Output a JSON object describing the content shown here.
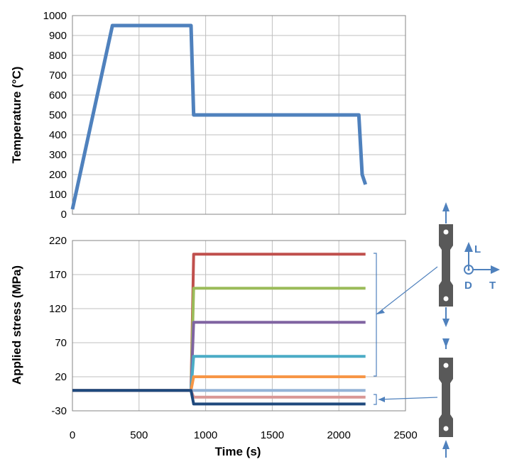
{
  "chart_data": [
    {
      "type": "line",
      "ylabel": "Temperature (°C)",
      "xlim": [
        0,
        2500
      ],
      "ylim": [
        0,
        1000
      ],
      "yticks": [
        0,
        100,
        200,
        300,
        400,
        500,
        600,
        700,
        800,
        900,
        1000
      ],
      "xticks": [
        0,
        500,
        1000,
        1500,
        2000,
        2500
      ],
      "grid": true,
      "series": [
        {
          "name": "Temperature",
          "color": "#4f81bd",
          "x": [
            0,
            300,
            890,
            910,
            2150,
            2175,
            2200
          ],
          "y": [
            25,
            950,
            950,
            500,
            500,
            200,
            150
          ]
        }
      ]
    },
    {
      "type": "line",
      "xlabel": "Time (s)",
      "ylabel": "Applied stress (MPa)",
      "xlim": [
        0,
        2500
      ],
      "ylim": [
        -30,
        220
      ],
      "yticks": [
        -30,
        20,
        70,
        120,
        170,
        220
      ],
      "xticks": [
        0,
        500,
        1000,
        1500,
        2000,
        2500
      ],
      "grid": true,
      "series": [
        {
          "name": "200 MPa",
          "color": "#c0504d",
          "x": [
            0,
            890,
            910,
            2200
          ],
          "y": [
            0,
            0,
            200,
            200
          ]
        },
        {
          "name": "150 MPa",
          "color": "#9bbb59",
          "x": [
            0,
            890,
            910,
            2200
          ],
          "y": [
            0,
            0,
            150,
            150
          ]
        },
        {
          "name": "100 MPa",
          "color": "#8064a2",
          "x": [
            0,
            890,
            910,
            2200
          ],
          "y": [
            0,
            0,
            100,
            100
          ]
        },
        {
          "name": "50 MPa",
          "color": "#4bacc6",
          "x": [
            0,
            890,
            910,
            2200
          ],
          "y": [
            0,
            0,
            50,
            50
          ]
        },
        {
          "name": "20 MPa",
          "color": "#f79646",
          "x": [
            0,
            890,
            910,
            2200
          ],
          "y": [
            0,
            0,
            20,
            20
          ]
        },
        {
          "name": "0 MPa",
          "color": "#95b3d7",
          "x": [
            0,
            890,
            910,
            2200
          ],
          "y": [
            0,
            0,
            0,
            0
          ]
        },
        {
          "name": "-10 MPa",
          "color": "#d99694",
          "x": [
            0,
            890,
            910,
            2200
          ],
          "y": [
            0,
            0,
            -10,
            -10
          ]
        },
        {
          "name": "-20 MPa",
          "color": "#1f497d",
          "x": [
            0,
            890,
            910,
            2200
          ],
          "y": [
            0,
            0,
            -20,
            -20
          ]
        }
      ]
    }
  ],
  "diagram": {
    "label_L": "L",
    "label_D": "D",
    "label_T": "T",
    "accent_color": "#4f81bd",
    "specimen_color": "#595959"
  }
}
